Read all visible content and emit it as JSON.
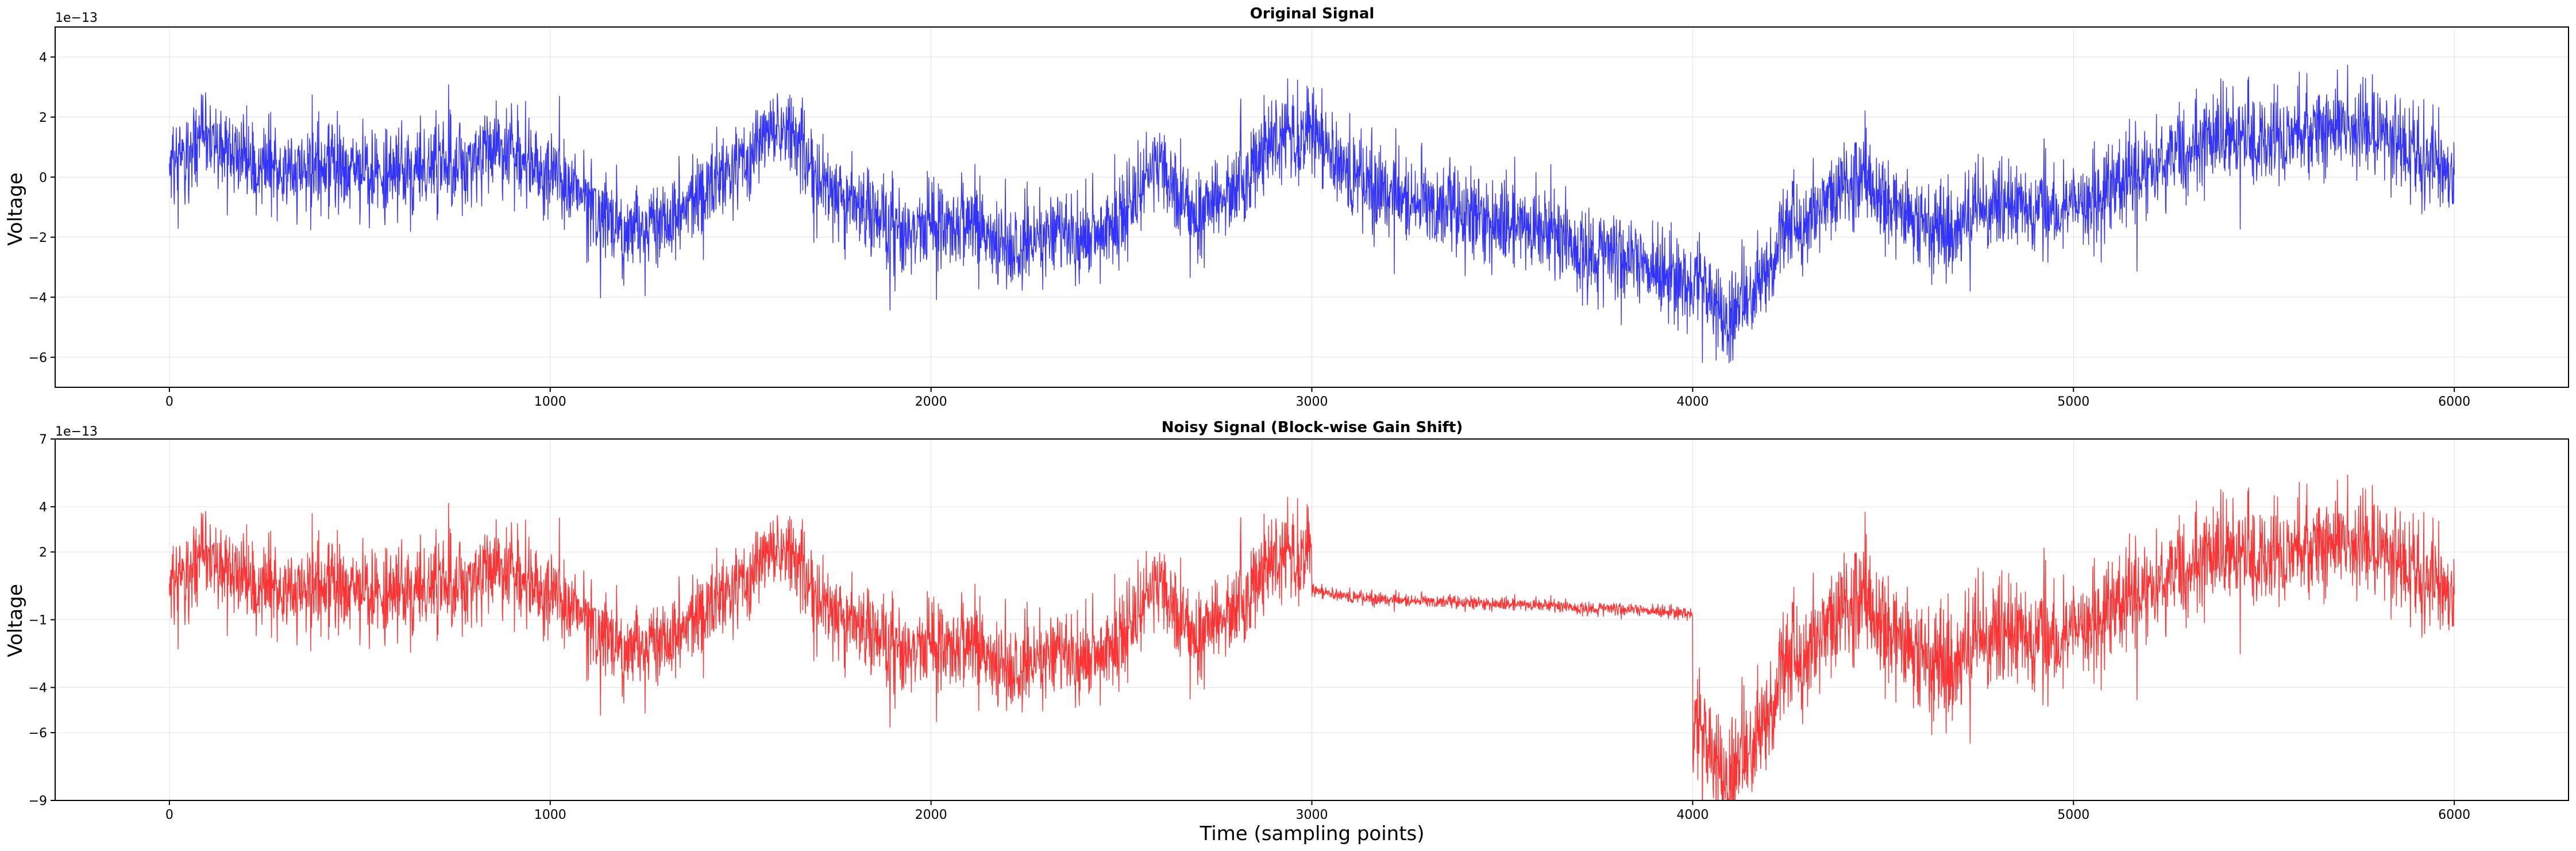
{
  "chart_data": [
    {
      "type": "line",
      "title": "Original Signal",
      "ylabel": "Voltage",
      "xlabel": "",
      "y_offset_label": "1e−13",
      "y_scale": 1e-13,
      "xlim": [
        -300,
        6300
      ],
      "ylim": [
        -7,
        5
      ],
      "x_ticks": [
        0,
        1000,
        2000,
        3000,
        4000,
        5000,
        6000
      ],
      "y_ticks": [
        -6,
        -4,
        -2,
        0,
        2,
        4
      ],
      "grid": true,
      "series": [
        {
          "color": "#0000ff",
          "x_start": 0,
          "x_end": 6000,
          "n_points": 6000,
          "trend_x": [
            0,
            100,
            250,
            400,
            550,
            700,
            850,
            950,
            1100,
            1200,
            1300,
            1400,
            1500,
            1600,
            1700,
            1800,
            1900,
            2000,
            2100,
            2200,
            2300,
            2400,
            2500,
            2600,
            2700,
            2800,
            2900,
            3000,
            3100,
            3200,
            3300,
            3400,
            3500,
            3600,
            3700,
            3800,
            3900,
            4000,
            4100,
            4150,
            4250,
            4350,
            4450,
            4550,
            4650,
            4800,
            4950,
            5100,
            5250,
            5400,
            5550,
            5700,
            5850,
            6000
          ],
          "trend_y": [
            0.5,
            1.3,
            0.2,
            0.4,
            0.2,
            0.1,
            0.9,
            0.5,
            -0.8,
            -1.9,
            -1.5,
            -0.6,
            0.5,
            1.9,
            0.1,
            -0.8,
            -1.9,
            -1.6,
            -1.6,
            -2.5,
            -1.8,
            -2.0,
            -1.6,
            0.7,
            -1.5,
            -0.5,
            1.4,
            1.5,
            0.0,
            -0.6,
            -1.0,
            -1.2,
            -1.4,
            -1.8,
            -2.5,
            -2.4,
            -3.2,
            -3.4,
            -4.7,
            -4.2,
            -1.8,
            -0.9,
            -0.1,
            -1.1,
            -1.9,
            -0.9,
            -1.2,
            -0.5,
            0.6,
            1.4,
            1.3,
            1.7,
            1.2,
            0.2
          ],
          "noise_sd": 0.75
        }
      ]
    },
    {
      "type": "line",
      "title": "Noisy Signal (Block-wise Gain Shift)",
      "ylabel": "Voltage",
      "xlabel": "Time (sampling points)",
      "y_offset_label": "1e−13",
      "y_scale": 1e-13,
      "xlim": [
        -300,
        6300
      ],
      "ylim": [
        -9,
        7
      ],
      "x_ticks": [
        0,
        1000,
        2000,
        3000,
        4000,
        5000,
        6000
      ],
      "y_ticks": [
        -9,
        -6,
        -4,
        -1,
        2,
        4,
        7
      ],
      "grid": true,
      "series": [
        {
          "color": "#ff0000",
          "x_start": 0,
          "x_end": 6000,
          "n_points": 6000,
          "block_size": 1000,
          "block_gains": [
            1.35,
            1.3,
            1.35,
            0.2,
            1.7,
            1.45
          ],
          "trend_x": [
            0,
            100,
            250,
            400,
            550,
            700,
            850,
            950,
            1100,
            1200,
            1300,
            1400,
            1500,
            1600,
            1700,
            1800,
            1900,
            2000,
            2100,
            2200,
            2300,
            2400,
            2500,
            2600,
            2700,
            2800,
            2900,
            3000,
            3100,
            3200,
            3300,
            3400,
            3500,
            3600,
            3700,
            3800,
            3900,
            4000,
            4100,
            4150,
            4250,
            4350,
            4450,
            4550,
            4650,
            4800,
            4950,
            5100,
            5250,
            5400,
            5550,
            5700,
            5850,
            6000
          ],
          "trend_y": [
            0.5,
            1.3,
            0.2,
            0.4,
            0.2,
            0.1,
            0.9,
            0.5,
            -0.8,
            -1.9,
            -1.5,
            -0.6,
            0.5,
            1.9,
            0.1,
            -0.8,
            -1.9,
            -1.6,
            -1.6,
            -2.5,
            -1.8,
            -2.0,
            -1.6,
            0.7,
            -1.5,
            -0.5,
            1.4,
            1.5,
            0.0,
            -0.6,
            -1.0,
            -1.2,
            -1.4,
            -1.8,
            -2.5,
            -2.4,
            -3.2,
            -3.4,
            -4.7,
            -4.2,
            -1.8,
            -0.9,
            -0.1,
            -1.1,
            -1.9,
            -0.9,
            -1.2,
            -0.5,
            0.6,
            1.4,
            1.3,
            1.7,
            1.2,
            0.2
          ],
          "noise_sd": 0.75
        }
      ]
    }
  ]
}
